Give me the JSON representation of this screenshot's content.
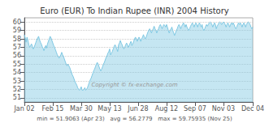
{
  "chart_data": {
    "type": "area",
    "title": "Euro (EUR) To Indian Rupee (INR) 2004 History",
    "annotations": [
      "Copyright © fx-exchange.com",
      "min = 51.9063 (Apr 23)   avg = 56.2779   max = 59.75935 (Nov 25)"
    ],
    "color": "#7ec8e3",
    "grid": true,
    "ylim": [
      50.5,
      60.5
    ],
    "yticks": [
      51,
      52,
      53,
      54,
      55,
      56,
      57,
      58,
      59,
      60
    ],
    "categories": [
      "Jan 02",
      null,
      null,
      null,
      null,
      null,
      null,
      null,
      null,
      null,
      null,
      null,
      null,
      null,
      null,
      null,
      null,
      null,
      null,
      null,
      null,
      null,
      null,
      null,
      null,
      null,
      null,
      null,
      null,
      null,
      null,
      null,
      "Feb 15",
      null,
      null,
      null,
      null,
      null,
      null,
      null,
      null,
      null,
      null,
      null,
      null,
      null,
      null,
      null,
      null,
      null,
      null,
      null,
      null,
      null,
      null,
      null,
      null,
      null,
      null,
      null,
      null,
      null,
      null,
      null,
      "Mar 30",
      null,
      null,
      null,
      null,
      null,
      null,
      null,
      null,
      null,
      null,
      null,
      null,
      null,
      null,
      null,
      null,
      null,
      null,
      null,
      null,
      null,
      null,
      null,
      null,
      null,
      null,
      null,
      null,
      null,
      null,
      null,
      "May 13",
      null,
      null,
      null,
      null,
      null,
      null,
      null,
      null,
      null,
      null,
      null,
      null,
      null,
      null,
      null,
      null,
      null,
      null,
      null,
      null,
      null,
      null,
      null,
      null,
      null,
      null,
      null,
      null,
      null,
      null,
      null,
      "Jun 28",
      null,
      null,
      null,
      null,
      null,
      null,
      null,
      null,
      null,
      null,
      null,
      null,
      null,
      null,
      null,
      null,
      null,
      null,
      null,
      null,
      null,
      null,
      null,
      null,
      null,
      null,
      null,
      null,
      null,
      null,
      null,
      "Aug 12",
      null,
      null,
      null,
      null,
      null,
      null,
      null,
      null,
      null,
      null,
      null,
      null,
      null,
      null,
      null,
      null,
      null,
      null,
      null,
      null,
      null,
      null,
      null,
      null,
      null,
      null,
      null,
      null,
      null,
      null,
      null,
      "Sep 07",
      null,
      null,
      null,
      null,
      null,
      null,
      null,
      null,
      null,
      null,
      null,
      null,
      null,
      null,
      null,
      null,
      null,
      null,
      null,
      null,
      null,
      null,
      null,
      null,
      null,
      null,
      null,
      null,
      null,
      null,
      null,
      "Nov 03",
      null,
      null,
      null,
      null,
      null,
      null,
      null,
      null,
      null,
      null,
      null,
      null,
      null,
      null,
      null,
      null,
      null,
      null,
      null,
      null,
      null,
      null,
      null,
      null,
      null,
      null,
      null,
      null,
      null,
      null,
      null,
      null,
      "Dec 04"
    ],
    "values": [
      58.5,
      58.1,
      57.6,
      58.2,
      57.8,
      57.3,
      57.0,
      57.2,
      57.4,
      57.1,
      56.8,
      57.0,
      57.3,
      57.6,
      57.9,
      58.1,
      58.3,
      57.9,
      57.6,
      57.4,
      57.1,
      56.9,
      56.6,
      56.9,
      57.2,
      56.9,
      57.4,
      57.7,
      58.0,
      58.3,
      58.1,
      57.8,
      57.5,
      57.2,
      57.0,
      56.7,
      56.4,
      56.1,
      55.9,
      55.7,
      55.9,
      56.1,
      56.4,
      56.1,
      55.9,
      55.6,
      55.3,
      55.0,
      54.8,
      55.0,
      54.8,
      54.6,
      54.3,
      54.0,
      53.7,
      53.5,
      53.2,
      52.9,
      52.7,
      52.5,
      52.2,
      52.0,
      51.9,
      52.1,
      52.3,
      51.9,
      51.9,
      52.0,
      52.2,
      51.9,
      52.0,
      52.2,
      52.5,
      52.8,
      53.1,
      53.3,
      53.6,
      53.9,
      54.2,
      54.4,
      54.7,
      55.0,
      55.2,
      55.0,
      54.7,
      54.4,
      54.2,
      54.4,
      54.7,
      55.0,
      55.2,
      55.5,
      55.8,
      56.0,
      56.3,
      56.5,
      56.8,
      56.1,
      56.3,
      56.5,
      56.8,
      57.1,
      57.3,
      57.1,
      56.8,
      56.5,
      57.3,
      57.5,
      57.8,
      57.5,
      57.3,
      57.0,
      56.8,
      57.0,
      57.3,
      57.5,
      57.3,
      57.0,
      57.2,
      57.5,
      57.7,
      57.2,
      57.4,
      57.7,
      58.0,
      58.2,
      58.0,
      57.7,
      58.0,
      58.2,
      58.0,
      57.7,
      58.0,
      58.2,
      58.5,
      58.2,
      58.0,
      58.2,
      58.5,
      58.8,
      59.0,
      59.2,
      59.0,
      58.7,
      59.0,
      59.2,
      59.5,
      59.2,
      59.0,
      58.7,
      59.0,
      59.2,
      59.5,
      59.7,
      59.5,
      59.2,
      59.5,
      59.7,
      59.6,
      59.4,
      59.7,
      59.4,
      59.0,
      58.7,
      59.0,
      59.2,
      59.4,
      59.0,
      58.7,
      58.4,
      58.7,
      59.0,
      59.2,
      59.5,
      59.7,
      59.5,
      59.2,
      59.5,
      59.7,
      59.9,
      59.7,
      59.4,
      59.7,
      59.4,
      59.2,
      59.0,
      59.2,
      59.5,
      59.7,
      59.9,
      59.7,
      59.4,
      59.7,
      59.9,
      59.7,
      59.4,
      59.7,
      59.9,
      59.7,
      59.4,
      59.7,
      59.2,
      59.0,
      59.2,
      59.5,
      59.7,
      59.5,
      59.7,
      59.9,
      60.0,
      59.9,
      59.7,
      59.4,
      59.7,
      59.9,
      59.7,
      59.2,
      59.5,
      59.7,
      59.9,
      60.0,
      59.9,
      59.7,
      59.9,
      60.0,
      59.9,
      59.7,
      59.4,
      59.7,
      59.9,
      59.7,
      59.4,
      59.7,
      59.9,
      59.7,
      59.9,
      59.7,
      59.4,
      59.2,
      59.4,
      59.7,
      59.9,
      59.7,
      59.9,
      59.7,
      59.4,
      59.7,
      59.9,
      59.7,
      59.4,
      59.7,
      59.9,
      60.0,
      59.9,
      59.7,
      59.4,
      59.2,
      59.4
    ]
  }
}
